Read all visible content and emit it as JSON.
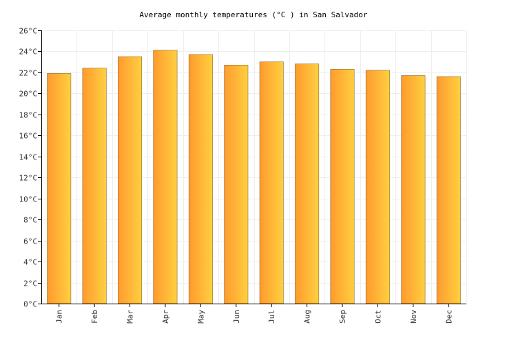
{
  "chart_data": {
    "type": "bar",
    "title": "Average monthly temperatures (°C ) in San Salvador",
    "categories": [
      "Jan",
      "Feb",
      "Mar",
      "Apr",
      "May",
      "Jun",
      "Jul",
      "Aug",
      "Sep",
      "Oct",
      "Nov",
      "Dec"
    ],
    "values": [
      21.9,
      22.4,
      23.5,
      24.1,
      23.7,
      22.7,
      23.0,
      22.8,
      22.3,
      22.2,
      21.7,
      21.6
    ],
    "unit": "°C",
    "ylim": [
      0,
      26
    ],
    "y_ticks": [
      0,
      2,
      4,
      6,
      8,
      10,
      12,
      14,
      16,
      18,
      20,
      22,
      24,
      26
    ],
    "y_tick_labels": [
      "0°C",
      "2°C",
      "4°C",
      "6°C",
      "8°C",
      "10°C",
      "12°C",
      "14°C",
      "16°C",
      "18°C",
      "20°C",
      "22°C",
      "24°C",
      "26°C"
    ],
    "grid": true,
    "legend": "none",
    "colors": {
      "bar_left": "#ff9a2e",
      "bar_right": "#ffd040",
      "bar_edge": "#8a6a2a",
      "grid": "#eeeeee",
      "axis": "#000000"
    }
  }
}
